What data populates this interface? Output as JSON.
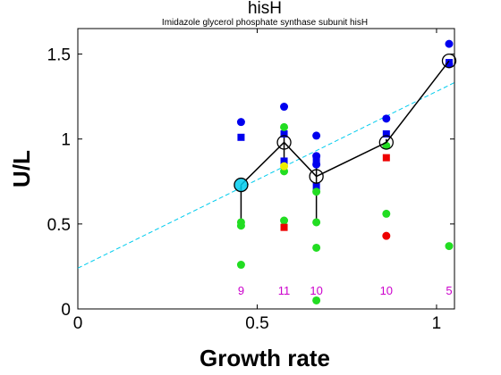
{
  "chart_data": {
    "type": "scatter",
    "title": "hisH",
    "subtitle": "Imidazole glycerol phosphate synthase subunit hisH",
    "xlabel": "Growth rate",
    "ylabel": "U/L",
    "xlim": [
      0,
      1.05
    ],
    "ylim": [
      0,
      1.65
    ],
    "xticks": [
      {
        "v": 0,
        "label": "0"
      },
      {
        "v": 0.5,
        "label": "0.5"
      },
      {
        "v": 1,
        "label": "1"
      }
    ],
    "yticks": [
      {
        "v": 0,
        "label": "0"
      },
      {
        "v": 0.5,
        "label": "0.5"
      },
      {
        "v": 1,
        "label": "1"
      },
      {
        "v": 1.5,
        "label": "1.5"
      }
    ],
    "grid": false,
    "colors": {
      "blue": "#0000ee",
      "green": "#22dd22",
      "red": "#ee0000",
      "fit": "#00ccee",
      "count": "#cc00cc",
      "mean": "#000000",
      "yellow": "#eeee00"
    },
    "fit_line": {
      "intercept": 0.24,
      "slope": 1.04
    },
    "mean_line": {
      "x": [
        0.455,
        0.575,
        0.665,
        0.86,
        1.035
      ],
      "y": [
        0.73,
        0.98,
        0.78,
        0.98,
        1.46
      ],
      "err_low": [
        0.51,
        0.85,
        0.51,
        0.97,
        1.43
      ],
      "err_high": [
        0.73,
        1.05,
        0.9,
        1.0,
        1.47
      ]
    },
    "series": [
      {
        "marker": "circle",
        "color": "blue",
        "points": [
          [
            0.455,
            1.1
          ],
          [
            0.575,
            1.19
          ],
          [
            0.665,
            1.02
          ],
          [
            0.665,
            0.9
          ],
          [
            0.665,
            0.85
          ],
          [
            0.86,
            1.12
          ],
          [
            1.035,
            1.56
          ],
          [
            1.035,
            1.44
          ]
        ]
      },
      {
        "marker": "square",
        "color": "blue",
        "points": [
          [
            0.455,
            1.01
          ],
          [
            0.575,
            1.03
          ],
          [
            0.575,
            0.87
          ],
          [
            0.665,
            0.88
          ],
          [
            0.665,
            0.72
          ],
          [
            0.86,
            1.03
          ],
          [
            1.035,
            1.45
          ]
        ]
      },
      {
        "marker": "circle",
        "color": "green",
        "points": [
          [
            0.455,
            0.51
          ],
          [
            0.455,
            0.49
          ],
          [
            0.455,
            0.26
          ],
          [
            0.575,
            1.07
          ],
          [
            0.575,
            0.81
          ],
          [
            0.575,
            0.52
          ],
          [
            0.665,
            0.69
          ],
          [
            0.665,
            0.51
          ],
          [
            0.665,
            0.36
          ],
          [
            0.665,
            0.05
          ],
          [
            0.86,
            0.96
          ],
          [
            0.86,
            0.56
          ],
          [
            1.035,
            0.37
          ]
        ]
      },
      {
        "marker": "circle",
        "color": "red",
        "points": [
          [
            0.86,
            0.43
          ]
        ]
      },
      {
        "marker": "square",
        "color": "red",
        "points": [
          [
            0.575,
            0.48
          ],
          [
            0.86,
            0.89
          ]
        ]
      },
      {
        "marker": "circle",
        "color": "yellow",
        "points": [
          [
            0.575,
            0.84
          ]
        ]
      }
    ],
    "counts": [
      {
        "x": 0.455,
        "label": "9"
      },
      {
        "x": 0.575,
        "label": "11"
      },
      {
        "x": 0.665,
        "label": "10"
      },
      {
        "x": 0.86,
        "label": "10"
      },
      {
        "x": 1.035,
        "label": "5"
      }
    ]
  }
}
